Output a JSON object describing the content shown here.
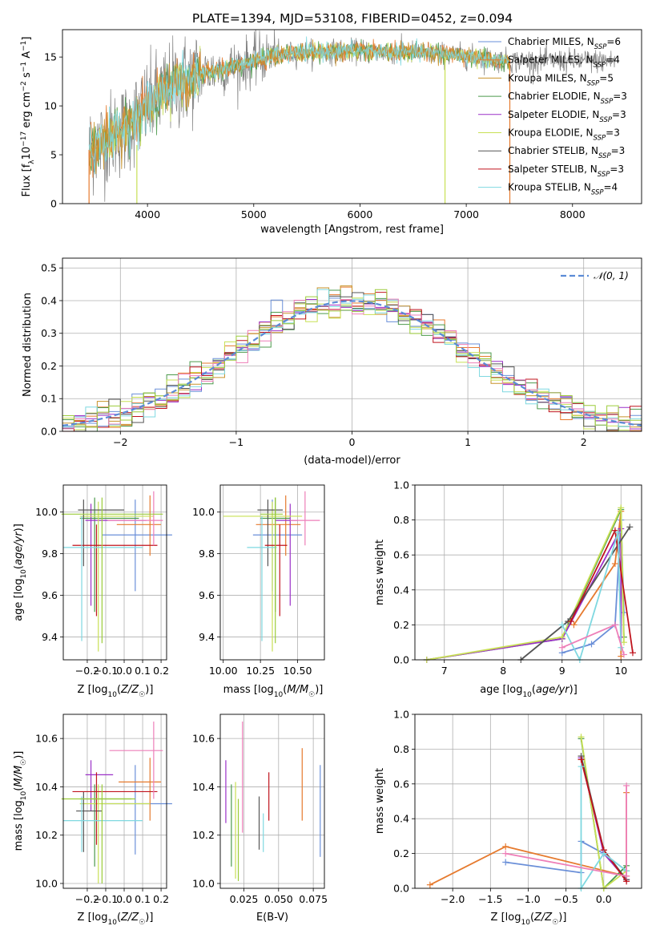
{
  "figure": {
    "title": "PLATE=1394, MJD=53108, FIBERID=0452, z=0.094"
  },
  "colors": {
    "Chabrier MILES": "#6a8fd8",
    "Salpeter MILES": "#e67a2e",
    "Kroupa MILES": "#c8922a",
    "Chabrier ELODIE": "#4c9a4c",
    "Salpeter ELODIE": "#9b30c8",
    "Kroupa ELODIE": "#c8e055",
    "Chabrier STELIB": "#555555",
    "Salpeter STELIB": "#c0141e",
    "Kroupa STELIB": "#7fd8e0",
    "pink": "#ee7fb8",
    "lime": "#9ccc3a",
    "orange": "#e67a2e",
    "normal_line": "#5b8bd6"
  },
  "chart_data": [
    {
      "id": "spectrum",
      "type": "line",
      "title": "PLATE=1394, MJD=53108, FIBERID=0452, z=0.094",
      "xlabel": "wavelength [Angstrom, rest frame]",
      "ylabel": "Flux [fλ10⁻¹⁷ erg cm⁻² s⁻¹ A⁻¹]",
      "xlim": [
        3200,
        8650
      ],
      "ylim": [
        0,
        17.8
      ],
      "xticks": [
        4000,
        5000,
        6000,
        7000,
        8000
      ],
      "yticks": [
        0,
        5,
        10,
        15
      ],
      "grid": false,
      "legend_position": "right",
      "legend": [
        "Chabrier MILES, N_SSP=6",
        "Salpeter MILES, N_SSP=4",
        "Kroupa MILES, N_SSP=5",
        "Chabrier ELODIE, N_SSP=3",
        "Salpeter ELODIE, N_SSP=3",
        "Kroupa ELODIE, N_SSP=3",
        "Chabrier STELIB, N_SSP=3",
        "Salpeter STELIB, N_SSP=3",
        "Kroupa STELIB, N_SSP=4"
      ],
      "data_continuum": {
        "x": [
          3450,
          3600,
          3800,
          4000,
          4200,
          4500,
          4800,
          5000,
          5200,
          5500,
          5800,
          6000,
          6300,
          6600,
          6900,
          7200,
          7400
        ],
        "y": [
          5.5,
          6.5,
          7.8,
          10.0,
          11.8,
          13.3,
          14.0,
          14.6,
          15.2,
          15.5,
          15.6,
          15.6,
          15.5,
          15.4,
          15.2,
          14.8,
          14.6
        ]
      },
      "model_range": {
        "x_start": 3450,
        "x_end": 7410
      },
      "data_range": {
        "x_start": 3450,
        "x_end": 8400
      }
    },
    {
      "id": "residuals",
      "type": "bar",
      "xlabel": "(data-model)/error",
      "ylabel": "Normed distribution",
      "xlim": [
        -2.5,
        2.5
      ],
      "ylim": [
        0,
        0.53
      ],
      "xticks": [
        -2,
        -1,
        0,
        1,
        2
      ],
      "yticks": [
        0.0,
        0.1,
        0.2,
        0.3,
        0.4,
        0.5
      ],
      "grid": true,
      "legend": [
        "𝒩(0, 1)"
      ],
      "legend_position": "top-right",
      "bin_width": 0.1,
      "bins_start": -2.5
    },
    {
      "id": "age_vs_Z",
      "type": "scatter",
      "xlabel": "Z [log10(Z/Z☉)]",
      "ylabel": "age  [log10(age/yr)]",
      "xlim": [
        -0.33,
        0.23
      ],
      "ylim": [
        9.29,
        10.13
      ],
      "xticks": [
        -0.2,
        -0.1,
        0.0,
        0.1,
        0.2
      ],
      "yticks": [
        9.4,
        9.6,
        9.8,
        10.0
      ],
      "grid": true,
      "series": [
        {
          "color": "Chabrier MILES",
          "x": 0.06,
          "y": 9.89,
          "xerr": [
            0.18,
            0.2
          ],
          "yerr": [
            0.27,
            0.17
          ]
        },
        {
          "color": "Salpeter MILES",
          "x": 0.14,
          "y": 9.94,
          "xerr": [
            0.18,
            0.06
          ],
          "yerr": [
            0.15,
            0.14
          ]
        },
        {
          "color": "Chabrier ELODIE",
          "x": -0.16,
          "y": 9.97,
          "xerr": [
            0.08,
            0.24
          ],
          "yerr": [
            0.45,
            0.1
          ]
        },
        {
          "color": "Salpeter ELODIE",
          "x": -0.18,
          "y": 9.96,
          "xerr": [
            0.03,
            0.3
          ],
          "yerr": [
            0.41,
            0.08
          ]
        },
        {
          "color": "Kroupa ELODIE",
          "x": -0.14,
          "y": 9.98,
          "xerr": [
            0.1,
            0.3
          ],
          "yerr": [
            0.65,
            0.07
          ]
        },
        {
          "color": "Chabrier STELIB",
          "x": -0.22,
          "y": 10.01,
          "xerr": [
            0.03,
            0.22
          ],
          "yerr": [
            0.27,
            0.05
          ]
        },
        {
          "color": "Salpeter STELIB",
          "x": -0.15,
          "y": 9.84,
          "xerr": [
            0.13,
            0.33
          ],
          "yerr": [
            0.34,
            0.1
          ]
        },
        {
          "color": "Kroupa STELIB",
          "x": -0.23,
          "y": 9.83,
          "xerr": [
            0.1,
            0.33
          ],
          "yerr": [
            0.45,
            0.15
          ]
        },
        {
          "color": "pink",
          "x": 0.16,
          "y": 9.96,
          "xerr": [
            0.25,
            0.05
          ],
          "yerr": [
            0.12,
            0.14
          ]
        },
        {
          "color": "lime",
          "x": -0.12,
          "y": 9.99,
          "xerr": [
            0.22,
            0.33
          ],
          "yerr": [
            0.62,
            0.08
          ]
        }
      ]
    },
    {
      "id": "age_vs_mass",
      "type": "scatter",
      "xlabel": "mass [log10(M/M☉)]",
      "ylabel": "",
      "xlim": [
        9.98,
        10.68
      ],
      "ylim": [
        9.29,
        10.13
      ],
      "xticks": [
        10.0,
        10.25,
        10.5
      ],
      "yticks": [
        9.4,
        9.6,
        9.8,
        10.0
      ],
      "grid": true,
      "series": [
        {
          "color": "Chabrier MILES",
          "x": 10.33,
          "y": 9.89,
          "xerr": [
            0.13,
            0.2
          ],
          "yerr": [
            0.27,
            0.17
          ]
        },
        {
          "color": "Salpeter MILES",
          "x": 10.42,
          "y": 9.94,
          "xerr": [
            0.2,
            0.1
          ],
          "yerr": [
            0.15,
            0.14
          ]
        },
        {
          "color": "Chabrier ELODIE",
          "x": 10.35,
          "y": 9.97,
          "xerr": [
            0.1,
            0.1
          ],
          "yerr": [
            0.45,
            0.1
          ]
        },
        {
          "color": "Salpeter ELODIE",
          "x": 10.45,
          "y": 9.96,
          "xerr": [
            0.1,
            0.05
          ],
          "yerr": [
            0.41,
            0.08
          ]
        },
        {
          "color": "Kroupa ELODIE",
          "x": 10.33,
          "y": 9.98,
          "xerr": [
            0.33,
            0.2
          ],
          "yerr": [
            0.65,
            0.07
          ]
        },
        {
          "color": "Chabrier STELIB",
          "x": 10.3,
          "y": 10.01,
          "xerr": [
            0.07,
            0.1
          ],
          "yerr": [
            0.27,
            0.05
          ]
        },
        {
          "color": "Salpeter STELIB",
          "x": 10.38,
          "y": 9.84,
          "xerr": [
            0.1,
            0.05
          ],
          "yerr": [
            0.34,
            0.1
          ]
        },
        {
          "color": "Kroupa STELIB",
          "x": 10.26,
          "y": 9.83,
          "xerr": [
            0.1,
            0.1
          ],
          "yerr": [
            0.45,
            0.15
          ]
        },
        {
          "color": "pink",
          "x": 10.55,
          "y": 9.96,
          "xerr": [
            0.1,
            0.1
          ],
          "yerr": [
            0.12,
            0.14
          ]
        },
        {
          "color": "lime",
          "x": 10.35,
          "y": 9.99,
          "xerr": [
            0.1,
            0.05
          ],
          "yerr": [
            0.62,
            0.08
          ]
        }
      ]
    },
    {
      "id": "mass_weight_vs_age",
      "type": "line",
      "xlabel": "age  [log10(age/yr)]",
      "ylabel": "mass weight",
      "xlim": [
        6.5,
        10.35
      ],
      "ylim": [
        0,
        1.0
      ],
      "xticks": [
        7,
        8,
        9,
        10
      ],
      "yticks": [
        0.0,
        0.2,
        0.4,
        0.6,
        0.8,
        1.0
      ],
      "grid": true,
      "series": [
        {
          "color": "Chabrier MILES",
          "x": [
            9.0,
            9.5,
            9.9,
            10.0,
            10.05
          ],
          "y": [
            0.04,
            0.09,
            0.2,
            0.8,
            0.27
          ]
        },
        {
          "color": "Salpeter MILES",
          "x": [
            9.2,
            9.9,
            10.0,
            10.0
          ],
          "y": [
            0.2,
            0.55,
            0.85,
            0.02
          ]
        },
        {
          "color": "Chabrier ELODIE",
          "x": [
            6.7,
            9.0,
            10.0,
            10.05
          ],
          "y": [
            0.0,
            0.12,
            0.86,
            0.13
          ]
        },
        {
          "color": "Salpeter ELODIE",
          "x": [
            6.7,
            9.0,
            10.0,
            10.0
          ],
          "y": [
            0.0,
            0.12,
            0.75,
            0.13
          ]
        },
        {
          "color": "Kroupa ELODIE",
          "x": [
            6.7,
            9.0,
            10.0,
            10.05
          ],
          "y": [
            0.0,
            0.13,
            0.87,
            0.1
          ]
        },
        {
          "color": "Chabrier STELIB",
          "x": [
            8.3,
            9.1,
            10.15
          ],
          "y": [
            0.0,
            0.22,
            0.76
          ]
        },
        {
          "color": "Salpeter STELIB",
          "x": [
            9.15,
            9.9,
            10.2
          ],
          "y": [
            0.22,
            0.74,
            0.04
          ]
        },
        {
          "color": "Kroupa STELIB",
          "x": [
            9.0,
            9.3,
            9.95,
            10.0
          ],
          "y": [
            0.2,
            0.0,
            0.73,
            0.07
          ]
        },
        {
          "color": "pink",
          "x": [
            9.0,
            9.9,
            10.05
          ],
          "y": [
            0.07,
            0.2,
            0.03
          ]
        }
      ]
    },
    {
      "id": "mass_vs_Z",
      "type": "scatter",
      "xlabel": "Z [log10(Z/Z☉)]",
      "ylabel": "mass [log10(M/M☉)]",
      "xlim": [
        -0.33,
        0.23
      ],
      "ylim": [
        9.98,
        10.7
      ],
      "xticks": [
        -0.2,
        -0.1,
        0.0,
        0.1,
        0.2
      ],
      "yticks": [
        10.0,
        10.2,
        10.4,
        10.6
      ],
      "grid": true,
      "series": [
        {
          "color": "Chabrier MILES",
          "x": 0.06,
          "y": 10.33,
          "xerr": [
            0.18,
            0.2
          ],
          "yerr": [
            0.21,
            0.16
          ]
        },
        {
          "color": "Salpeter MILES",
          "x": 0.14,
          "y": 10.42,
          "xerr": [
            0.17,
            0.06
          ],
          "yerr": [
            0.16,
            0.1
          ]
        },
        {
          "color": "Chabrier ELODIE",
          "x": -0.16,
          "y": 10.35,
          "xerr": [
            0.08,
            0.2
          ],
          "yerr": [
            0.28,
            0.06
          ]
        },
        {
          "color": "Salpeter ELODIE",
          "x": -0.18,
          "y": 10.45,
          "xerr": [
            0.03,
            0.12
          ],
          "yerr": [
            0.15,
            0.06
          ]
        },
        {
          "color": "Kroupa ELODIE",
          "x": -0.14,
          "y": 10.33,
          "xerr": [
            0.1,
            0.28
          ],
          "yerr": [
            0.33,
            0.08
          ]
        },
        {
          "color": "Chabrier STELIB",
          "x": -0.22,
          "y": 10.3,
          "xerr": [
            0.04,
            0.1
          ],
          "yerr": [
            0.17,
            0.08
          ]
        },
        {
          "color": "Salpeter STELIB",
          "x": -0.15,
          "y": 10.38,
          "xerr": [
            0.13,
            0.33
          ],
          "yerr": [
            0.22,
            0.08
          ]
        },
        {
          "color": "Kroupa STELIB",
          "x": -0.23,
          "y": 10.26,
          "xerr": [
            0.1,
            0.33
          ],
          "yerr": [
            0.13,
            0.1
          ]
        },
        {
          "color": "pink",
          "x": 0.16,
          "y": 10.55,
          "xerr": [
            0.24,
            0.05
          ],
          "yerr": [
            0.2,
            0.12
          ]
        },
        {
          "color": "lime",
          "x": -0.12,
          "y": 10.35,
          "xerr": [
            0.22,
            0.18
          ],
          "yerr": [
            0.35,
            0.06
          ]
        }
      ]
    },
    {
      "id": "mass_vs_ebv",
      "type": "scatter",
      "xlabel": "E(B-V)",
      "ylabel": "",
      "xlim": [
        0.008,
        0.083
      ],
      "ylim": [
        9.98,
        10.7
      ],
      "xticks": [
        0.025,
        0.05,
        0.075
      ],
      "yticks": [
        10.0,
        10.2,
        10.4,
        10.6
      ],
      "grid": true,
      "series": [
        {
          "color": "Chabrier MILES",
          "x": 0.08,
          "y": 10.3,
          "yerr": [
            0.19,
            0.19
          ]
        },
        {
          "color": "Salpeter MILES",
          "x": 0.067,
          "y": 10.41,
          "yerr": [
            0.15,
            0.15
          ]
        },
        {
          "color": "Chabrier ELODIE",
          "x": 0.016,
          "y": 10.24,
          "yerr": [
            0.17,
            0.17
          ]
        },
        {
          "color": "Salpeter ELODIE",
          "x": 0.012,
          "y": 10.38,
          "yerr": [
            0.13,
            0.13
          ]
        },
        {
          "color": "Kroupa ELODIE",
          "x": 0.019,
          "y": 10.22,
          "yerr": [
            0.2,
            0.2
          ]
        },
        {
          "color": "Chabrier STELIB",
          "x": 0.036,
          "y": 10.25,
          "yerr": [
            0.11,
            0.11
          ]
        },
        {
          "color": "Salpeter STELIB",
          "x": 0.043,
          "y": 10.36,
          "yerr": [
            0.1,
            0.1
          ]
        },
        {
          "color": "Kroupa STELIB",
          "x": 0.039,
          "y": 10.21,
          "yerr": [
            0.08,
            0.08
          ]
        },
        {
          "color": "pink",
          "x": 0.024,
          "y": 10.44,
          "yerr": [
            0.23,
            0.23
          ]
        },
        {
          "color": "lime",
          "x": 0.021,
          "y": 10.18,
          "yerr": [
            0.17,
            0.17
          ]
        }
      ]
    },
    {
      "id": "mass_weight_vs_Z",
      "type": "line",
      "xlabel": "Z [log10(Z/Z☉)]",
      "ylabel": "mass weight",
      "xlim": [
        -2.5,
        0.5
      ],
      "ylim": [
        0,
        1.0
      ],
      "xticks": [
        -2.0,
        -1.5,
        -1.0,
        -0.5,
        0.0
      ],
      "yticks": [
        0.0,
        0.2,
        0.4,
        0.6,
        0.8,
        1.0
      ],
      "grid": true,
      "series": [
        {
          "color": "Chabrier MILES",
          "x": [
            -1.3,
            -0.3,
            -0.3,
            -0.0,
            0.3
          ],
          "y": [
            0.15,
            0.09,
            0.27,
            0.2,
            0.1
          ]
        },
        {
          "color": "Salpeter MILES",
          "x": [
            -2.3,
            -1.3,
            0.3,
            0.3
          ],
          "y": [
            0.02,
            0.24,
            0.07,
            0.55
          ]
        },
        {
          "color": "Chabrier ELODIE",
          "x": [
            -0.3,
            0.0,
            0.3
          ],
          "y": [
            0.86,
            0.0,
            0.13
          ]
        },
        {
          "color": "Salpeter ELODIE",
          "x": [
            -0.3,
            0.0,
            0.3
          ],
          "y": [
            0.75,
            0.2,
            0.05
          ]
        },
        {
          "color": "Kroupa ELODIE",
          "x": [
            -0.3,
            0.0,
            0.3
          ],
          "y": [
            0.87,
            0.0,
            0.1
          ]
        },
        {
          "color": "Chabrier STELIB",
          "x": [
            -0.3,
            0.0,
            0.3
          ],
          "y": [
            0.76,
            0.22,
            0.05
          ]
        },
        {
          "color": "Salpeter STELIB",
          "x": [
            -0.3,
            0.0,
            0.3
          ],
          "y": [
            0.74,
            0.22,
            0.04
          ]
        },
        {
          "color": "Kroupa STELIB",
          "x": [
            -0.3,
            -0.3,
            0.0,
            0.3
          ],
          "y": [
            0.7,
            0.0,
            0.2,
            0.1
          ]
        },
        {
          "color": "pink",
          "x": [
            -1.3,
            0.3,
            0.3
          ],
          "y": [
            0.2,
            0.07,
            0.59
          ]
        }
      ]
    }
  ]
}
